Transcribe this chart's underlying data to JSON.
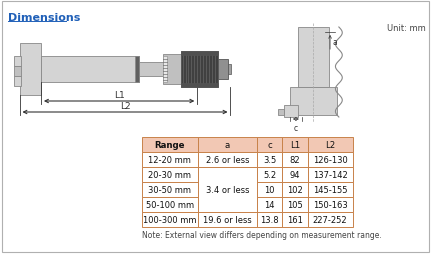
{
  "title": "Dimensions",
  "unit_text": "Unit: mm",
  "table_headers": [
    "Range",
    "a",
    "c",
    "L1",
    "L2"
  ],
  "table_rows": [
    [
      "12-20 mm",
      "2.6 or less",
      "3.5",
      "82",
      "126-130"
    ],
    [
      "20-30 mm",
      "",
      "5.2",
      "94",
      "137-142"
    ],
    [
      "30-50 mm",
      "3.4 or less",
      "10",
      "102",
      "145-155"
    ],
    [
      "50-100 mm",
      "",
      "14",
      "105",
      "150-163"
    ],
    [
      "100-300 mm",
      "19.6 or less",
      "13.8",
      "161",
      "227-252"
    ]
  ],
  "note": "Note: External view differs depending on measurement range.",
  "header_bg": "#f2c8b4",
  "row_bg_white": "#ffffff",
  "border_color": "#c8824a",
  "title_color": "#2060b8",
  "outer_border": "#b0b0b0",
  "bg_color": "#ffffff",
  "body_fill": "#d4d4d4",
  "body_edge": "#888888",
  "dark_fill": "#404040",
  "mid_fill": "#b0b0b0"
}
